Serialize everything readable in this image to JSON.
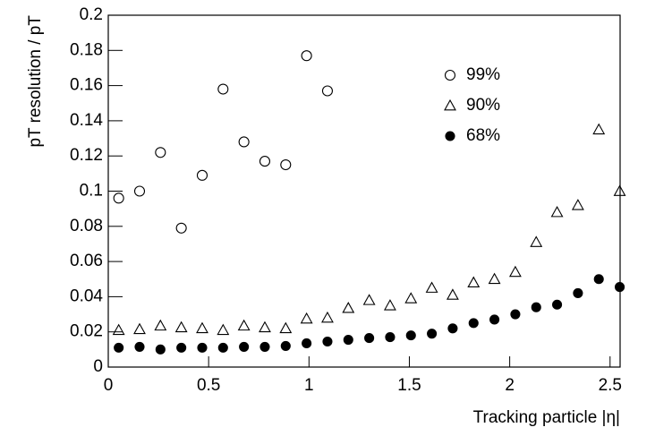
{
  "chart_data": {
    "type": "scatter",
    "xlabel": "Tracking particle |η|",
    "ylabel": "pT resolution / pT",
    "x": [
      0.052,
      0.156,
      0.26,
      0.364,
      0.468,
      0.572,
      0.676,
      0.78,
      0.884,
      0.988,
      1.092,
      1.196,
      1.3,
      1.404,
      1.508,
      1.612,
      1.716,
      1.82,
      1.924,
      2.028,
      2.132,
      2.236,
      2.34,
      2.444,
      2.548
    ],
    "series": [
      {
        "name": "99%",
        "color": "#000000",
        "marker": "circle-open",
        "values": [
          0.096,
          0.1,
          0.122,
          0.079,
          0.109,
          0.158,
          0.128,
          0.117,
          0.115,
          0.177,
          0.157,
          null,
          null,
          null,
          null,
          null,
          null,
          null,
          null,
          null,
          null,
          null,
          null,
          null,
          null
        ]
      },
      {
        "name": "90%",
        "color": "#000000",
        "marker": "triangle-open",
        "values": [
          0.021,
          0.0215,
          0.0235,
          0.0225,
          0.022,
          0.021,
          0.0235,
          0.0225,
          0.022,
          0.0275,
          0.028,
          0.0335,
          0.038,
          0.035,
          0.039,
          0.045,
          0.041,
          0.048,
          0.05,
          0.054,
          0.071,
          0.088,
          0.092,
          0.135,
          0.1
        ]
      },
      {
        "name": "68%",
        "color": "#000000",
        "marker": "circle",
        "values": [
          0.011,
          0.0115,
          0.01,
          0.011,
          0.011,
          0.011,
          0.0115,
          0.0115,
          0.012,
          0.0135,
          0.0145,
          0.0155,
          0.0165,
          0.017,
          0.018,
          0.019,
          0.022,
          0.025,
          0.027,
          0.03,
          0.034,
          0.0355,
          0.042,
          0.05,
          0.0455
        ]
      }
    ],
    "xlim": [
      0,
      2.55
    ],
    "ylim": [
      0,
      0.2
    ],
    "xticks": [
      0,
      0.5,
      1,
      1.5,
      2,
      2.5
    ],
    "yticks": [
      0,
      0.02,
      0.04,
      0.06,
      0.08,
      0.1,
      0.12,
      0.14,
      0.16,
      0.18,
      0.2
    ],
    "legend": "upper right"
  }
}
